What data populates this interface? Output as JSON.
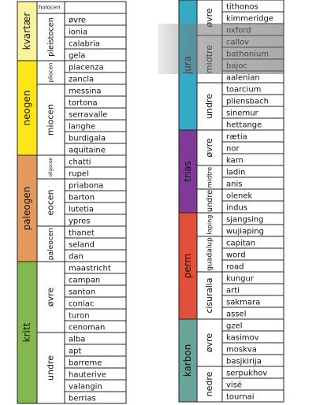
{
  "columns": [
    {
      "periods": [
        {
          "name": "kvartær",
          "color": "#f9f3a0",
          "epochs": [
            {
              "name": "holocen",
              "stages": []
            },
            {
              "name": "pleistocen",
              "stages": [
                "øvre",
                "ionia",
                "calabria",
                "gela"
              ]
            }
          ]
        },
        {
          "name": "neogen",
          "color": "#ffe619",
          "epochs": [
            {
              "name": "pliocen",
              "stages": [
                "piacenza",
                "zancla"
              ]
            },
            {
              "name": "miocen",
              "stages": [
                "messina",
                "tortona",
                "serravalle",
                "langhe",
                "burdigala",
                "aquitaine"
              ]
            }
          ]
        },
        {
          "name": "paleogen",
          "color": "#e39a5c",
          "epochs": [
            {
              "name": "oligocen",
              "stages": [
                "chatti",
                "rupel"
              ]
            },
            {
              "name": "eocen",
              "stages": [
                "priabona",
                "barton",
                "lutetia",
                "ypres"
              ]
            },
            {
              "name": "paleocen",
              "stages": [
                "thanet",
                "seland",
                "dan"
              ]
            }
          ]
        },
        {
          "name": "kritt",
          "color": "#84b84f",
          "epochs": [
            {
              "name": "øvre",
              "stages": [
                "maastricht",
                "campan",
                "santon",
                "coniac",
                "turon",
                "cenoman"
              ]
            },
            {
              "name": "undre",
              "stages": [
                "alba",
                "apt",
                "barreme",
                "hauterive",
                "valangin",
                "berrias"
              ]
            }
          ]
        }
      ]
    },
    {
      "periods": [
        {
          "name": "jura",
          "color": "#35aac4",
          "epochs": [
            {
              "name": "øvre",
              "stages": [
                "tithonos",
                "kimmeridge",
                "oxford"
              ]
            },
            {
              "name": "midtre",
              "stages": [
                "callov",
                "bathonium",
                "bajoc",
                "aalenian"
              ]
            },
            {
              "name": "undre",
              "stages": [
                "toarcium",
                "pliensbach",
                "sinemur",
                "hettange"
              ]
            }
          ]
        },
        {
          "name": "trias",
          "color": "#7f3a95",
          "epochs": [
            {
              "name": "øvre",
              "stages": [
                "rætia",
                "nor",
                "karn"
              ]
            },
            {
              "name": "midtre",
              "stages": [
                "ladin",
                "anis"
              ]
            },
            {
              "name": "undre",
              "stages": [
                "olenek",
                "indus"
              ]
            }
          ]
        },
        {
          "name": "perm",
          "color": "#e0503a",
          "epochs": [
            {
              "name": "loping",
              "stages": [
                "sjangsing",
                "wujiaping"
              ]
            },
            {
              "name": "guadalup",
              "stages": [
                "capitan",
                "word",
                "road"
              ]
            },
            {
              "name": "cisuralia",
              "stages": [
                "kungur",
                "arti",
                "sakmara",
                "assel"
              ]
            }
          ]
        },
        {
          "name": "karbon",
          "color": "#69a49a",
          "epochs": [
            {
              "name": "øvre",
              "stages": [
                "gzel",
                "kasimov",
                "moskva",
                "basjkirija"
              ]
            },
            {
              "name": "nedre",
              "stages": [
                "serpukhov",
                "visé",
                "tournai"
              ]
            }
          ]
        }
      ]
    }
  ]
}
